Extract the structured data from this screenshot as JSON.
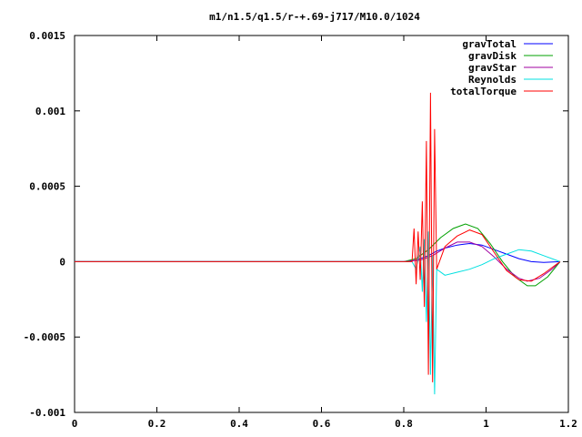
{
  "chart_data": {
    "type": "line",
    "title": "m1/n1.5/q1.5/r-+.69-j717/M10.0/1024",
    "xlabel": "",
    "ylabel": "",
    "xlim": [
      0,
      1.2
    ],
    "ylim": [
      -0.001,
      0.0015
    ],
    "x_ticks": [
      0,
      0.2,
      0.4,
      0.6,
      0.8,
      1,
      1.2
    ],
    "x_tick_labels": [
      "0",
      "0.2",
      "0.4",
      "0.6",
      "0.8",
      "1",
      "1.2"
    ],
    "y_ticks": [
      -0.001,
      -0.0005,
      0,
      0.0005,
      0.001,
      0.0015
    ],
    "y_tick_labels": [
      "-0.001",
      "-0.0005",
      "0",
      "0.0005",
      "0.001",
      "0.0015"
    ],
    "grid": false,
    "legend_position": "top-right",
    "series": [
      {
        "name": "gravTotal",
        "color": "#0000ff",
        "x": [
          0,
          0.8,
          0.83,
          0.86,
          0.88,
          0.9,
          0.93,
          0.96,
          0.99,
          1.02,
          1.05,
          1.08,
          1.11,
          1.14,
          1.18
        ],
        "y": [
          0,
          0,
          1e-05,
          4e-05,
          7e-05,
          9e-05,
          0.00011,
          0.00012,
          0.00011,
          8e-05,
          5e-05,
          2e-05,
          0,
          -5e-06,
          0
        ]
      },
      {
        "name": "gravDisk",
        "color": "#00a000",
        "x": [
          0,
          0.8,
          0.83,
          0.86,
          0.89,
          0.92,
          0.95,
          0.98,
          1.01,
          1.04,
          1.07,
          1.1,
          1.12,
          1.15,
          1.18
        ],
        "y": [
          0,
          0,
          2e-05,
          8e-05,
          0.00016,
          0.00022,
          0.00025,
          0.00022,
          0.00012,
          0,
          -0.0001,
          -0.00016,
          -0.00016,
          -0.0001,
          0
        ]
      },
      {
        "name": "gravStar",
        "color": "#a000a0",
        "x": [
          0,
          0.8,
          0.84,
          0.87,
          0.9,
          0.93,
          0.96,
          0.99,
          1.02,
          1.05,
          1.08,
          1.1,
          1.13,
          1.16,
          1.18
        ],
        "y": [
          0,
          0,
          1e-05,
          4e-05,
          9e-05,
          0.00013,
          0.00013,
          0.0001,
          3e-05,
          -5e-05,
          -0.00011,
          -0.00013,
          -0.00011,
          -5e-05,
          0
        ]
      },
      {
        "name": "Reynolds",
        "color": "#00e0e0",
        "x": [
          0,
          0.82,
          0.83,
          0.84,
          0.845,
          0.85,
          0.855,
          0.86,
          0.865,
          0.87,
          0.875,
          0.88,
          0.9,
          0.93,
          0.96,
          0.99,
          1.02,
          1.05,
          1.08,
          1.11,
          1.14,
          1.18
        ],
        "y": [
          0,
          0,
          -5e-05,
          0.0001,
          -0.0002,
          0.00015,
          -0.0004,
          0.0002,
          -0.00075,
          4e-05,
          -0.00088,
          -5e-05,
          -9e-05,
          -7e-05,
          -5e-05,
          -2e-05,
          2e-05,
          5e-05,
          8e-05,
          7e-05,
          4e-05,
          0
        ]
      },
      {
        "name": "totalTorque",
        "color": "#ff0000",
        "x": [
          0,
          0.82,
          0.825,
          0.83,
          0.835,
          0.84,
          0.845,
          0.85,
          0.855,
          0.86,
          0.865,
          0.87,
          0.875,
          0.88,
          0.9,
          0.93,
          0.96,
          0.99,
          1.02,
          1.05,
          1.08,
          1.11,
          1.14,
          1.18
        ],
        "y": [
          0,
          0,
          0.00022,
          -0.00015,
          0.0002,
          -0.00012,
          0.0004,
          -0.0003,
          0.0008,
          -0.00075,
          0.00112,
          -0.0008,
          0.00088,
          -5e-05,
          0.0001,
          0.00017,
          0.00021,
          0.00018,
          6e-05,
          -6e-05,
          -0.00012,
          -0.00013,
          -8e-05,
          0
        ]
      }
    ]
  }
}
